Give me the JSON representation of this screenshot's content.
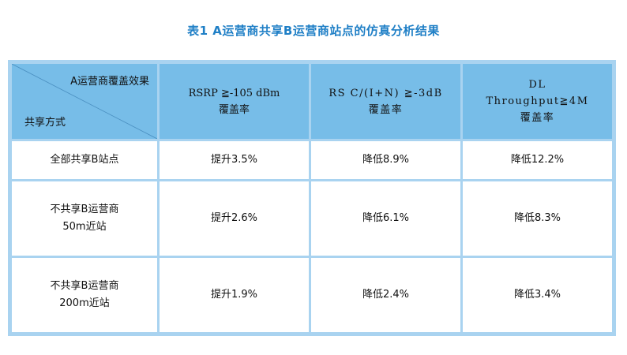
{
  "caption": "表1  A运营商共享B运营商站点的仿真分析结果",
  "header": {
    "corner_top": "A运营商覆盖效果",
    "corner_bottom": "共享方式",
    "columns": [
      {
        "line1": "RSRP ≧-105 dBm",
        "line2": "覆盖率"
      },
      {
        "line1": "RS C/(I+N) ≧-3dB",
        "line2": "覆盖率"
      },
      {
        "line1": "DL",
        "line2": "Throughput≧4M",
        "line3": "覆盖率"
      }
    ]
  },
  "rows": [
    {
      "label_line1": "全部共享B站点",
      "label_line2": "",
      "values": [
        "提升3.5%",
        "降低8.9%",
        "降低12.2%"
      ]
    },
    {
      "label_line1": "不共享B运营商",
      "label_line2": "50m近站",
      "values": [
        "提升2.6%",
        "降低6.1%",
        "降低8.3%"
      ]
    },
    {
      "label_line1": "不共享B运营商",
      "label_line2": "200m近站",
      "values": [
        "提升1.9%",
        "降低2.4%",
        "降低3.4%"
      ]
    }
  ]
}
